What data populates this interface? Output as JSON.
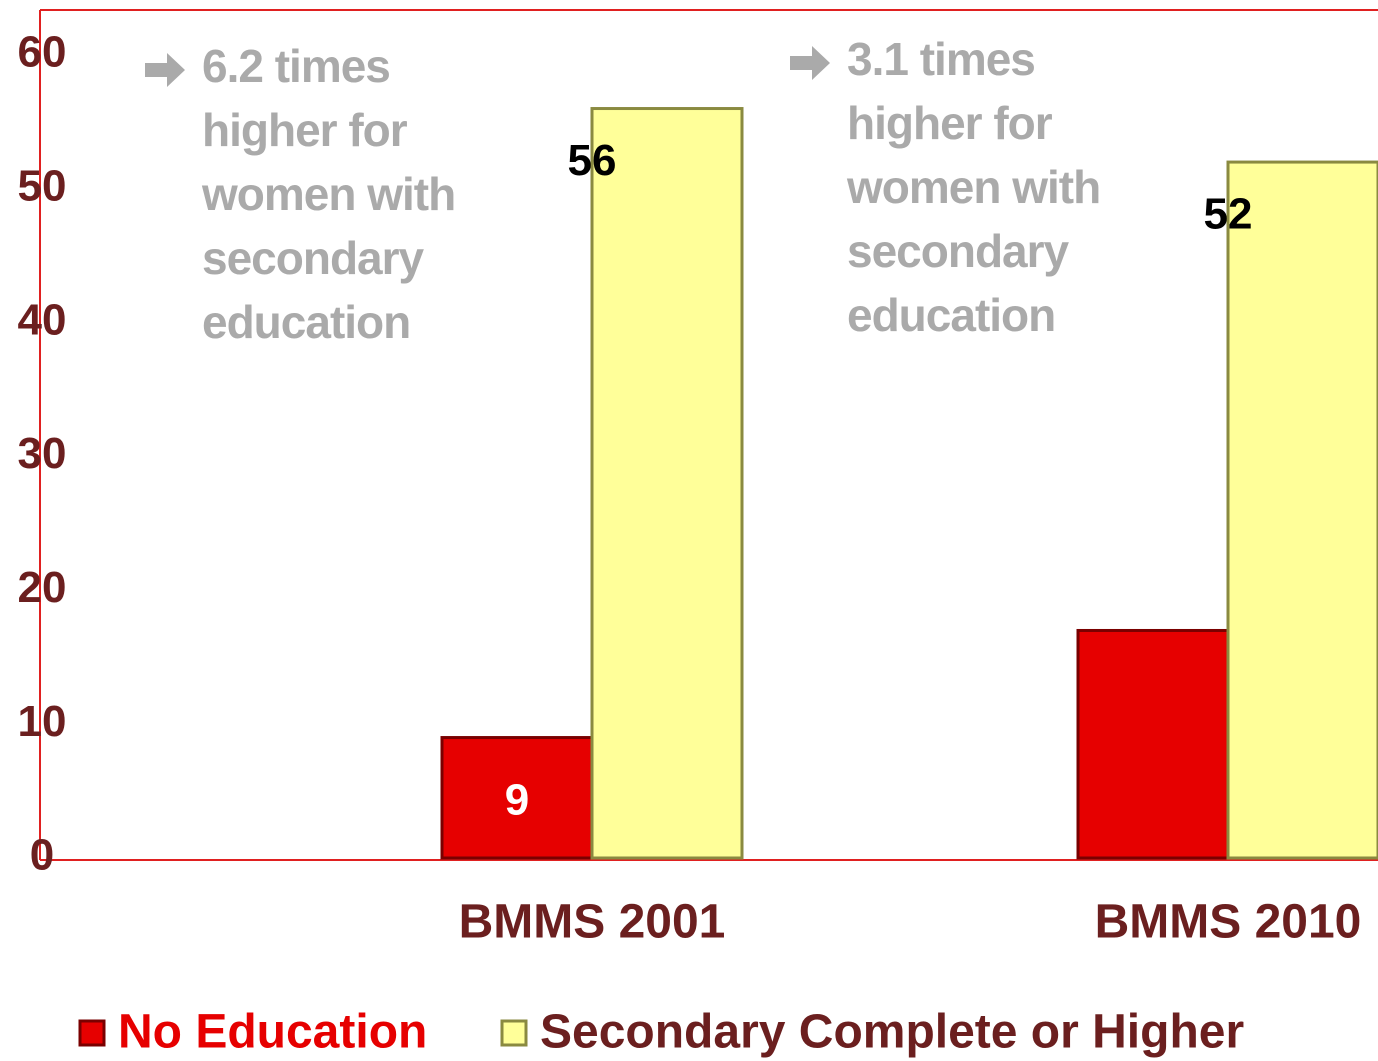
{
  "chart_data": {
    "type": "bar",
    "categories": [
      "BMMS 2001",
      "BMMS 2010"
    ],
    "series": [
      {
        "name": "No Education",
        "color": "#e60000",
        "values": [
          9,
          17
        ],
        "value_labels": [
          "9",
          null
        ]
      },
      {
        "name": "Secondary Complete or Higher",
        "color": "#ffff99",
        "values": [
          56,
          52
        ],
        "value_labels": [
          "56",
          "52"
        ]
      }
    ],
    "ylim": [
      0,
      60
    ],
    "yticks": [
      0,
      10,
      20,
      30,
      40,
      50,
      60
    ],
    "grid": false,
    "legend": "bottom",
    "annotations": [
      [
        "6.2 times",
        "higher for",
        "women with",
        "secondary",
        "education"
      ],
      [
        "3.1 times",
        "higher for",
        "women with",
        "secondary",
        "education"
      ]
    ]
  }
}
